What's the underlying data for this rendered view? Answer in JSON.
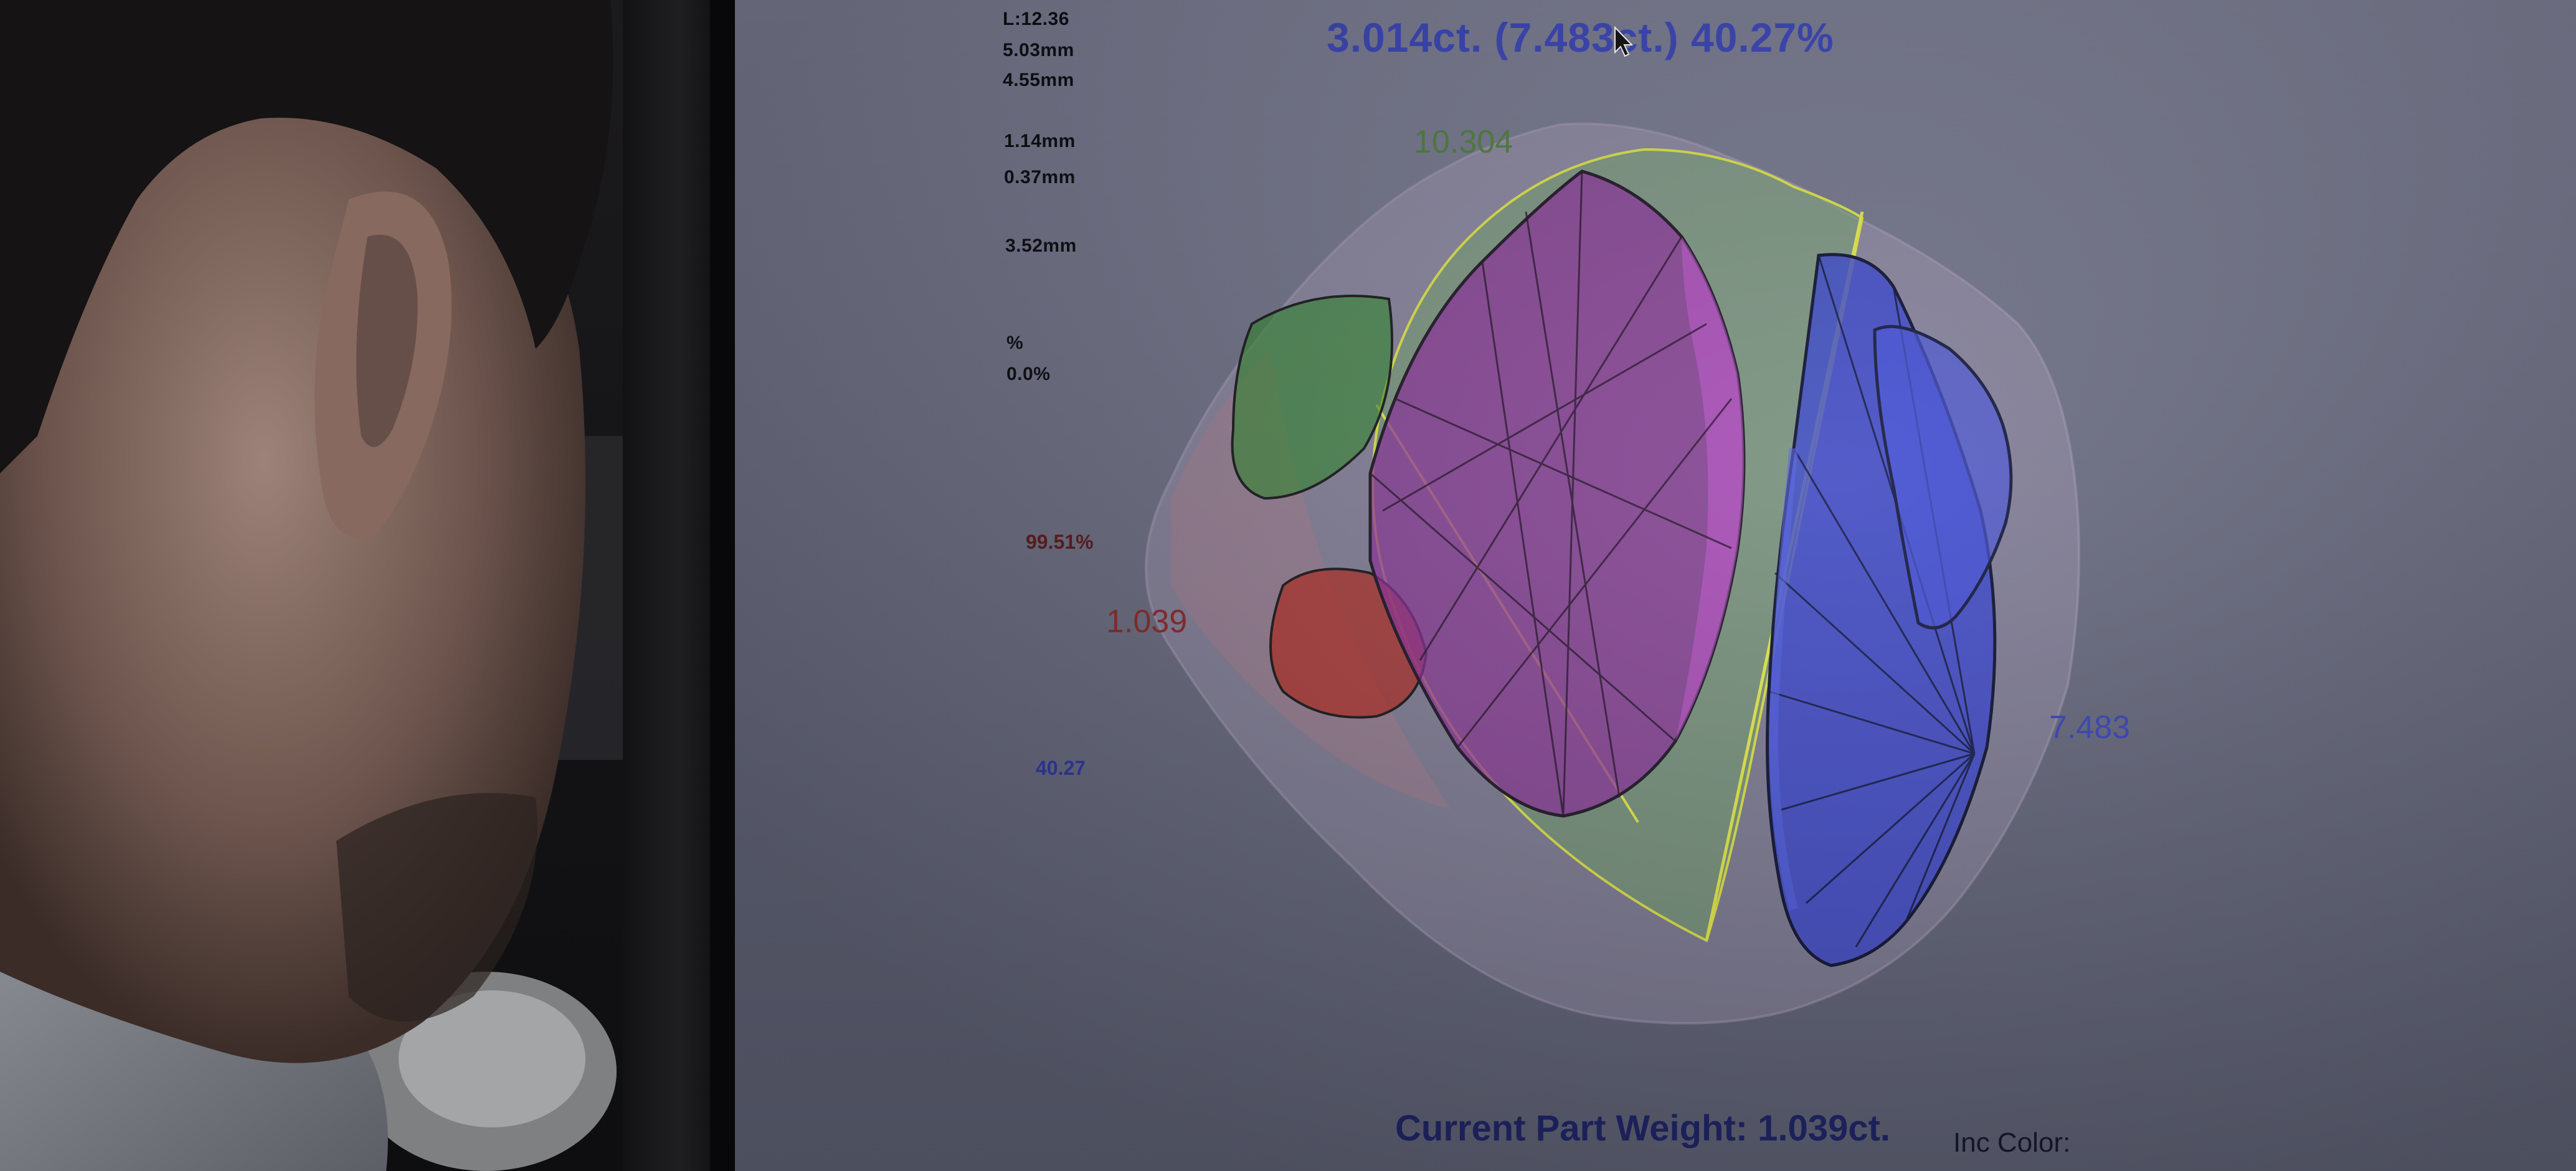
{
  "measurements": {
    "length": "L:12.36",
    "width": "5.03mm",
    "depth": "4.55mm",
    "girdle": "1.14mm",
    "culet": "0.37mm",
    "table": "3.52mm",
    "percent_label": "%",
    "percent_value": "0.0%"
  },
  "headline": "3.014ct. (7.483ct.) 40.27%",
  "part_labels": {
    "green": "10.304",
    "red": "1.039",
    "blue": "7.483"
  },
  "side_stats": {
    "red_percent": "99.51%",
    "blue_value": "40.27"
  },
  "footer": {
    "current_part_weight": "Current Part Weight: 1.039ct.",
    "inc_color": "Inc Color:"
  },
  "colors": {
    "headline": "#3b46b7",
    "green_part": "#4f7f3e",
    "red_part": "#8a2a2a",
    "blue_part": "#3b46b7",
    "purple_part": "#7a2f8a"
  }
}
